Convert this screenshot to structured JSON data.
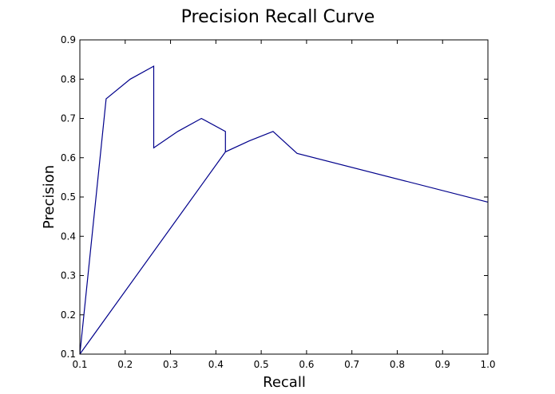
{
  "chart_data": {
    "type": "line",
    "title": "Precision Recall Curve",
    "xlabel": "Recall",
    "ylabel": "Precision",
    "xlim": [
      0.1,
      1.0
    ],
    "ylim": [
      0.1,
      0.9
    ],
    "xticks": [
      "0.1",
      "0.2",
      "0.3",
      "0.4",
      "0.5",
      "0.6",
      "0.7",
      "0.8",
      "0.9",
      "1.0"
    ],
    "yticks": [
      "0.1",
      "0.2",
      "0.3",
      "0.4",
      "0.5",
      "0.6",
      "0.7",
      "0.8",
      "0.9"
    ],
    "grid": false,
    "series": [
      {
        "name": "precision-recall",
        "color": "#00008b",
        "points": [
          [
            0.1,
            0.1
          ],
          [
            0.158,
            0.75
          ],
          [
            0.1,
            0.1
          ],
          [
            0.158,
            0.75
          ],
          [
            0.211,
            0.8
          ],
          [
            0.263,
            0.833
          ],
          [
            0.263,
            0.625
          ],
          [
            0.316,
            0.667
          ],
          [
            0.368,
            0.7
          ],
          [
            0.421,
            0.667
          ],
          [
            0.421,
            0.615
          ],
          [
            0.1,
            0.1
          ],
          [
            0.421,
            0.615
          ],
          [
            0.474,
            0.643
          ],
          [
            0.526,
            0.667
          ],
          [
            0.579,
            0.611
          ],
          [
            1.0,
            0.487
          ]
        ]
      }
    ]
  }
}
